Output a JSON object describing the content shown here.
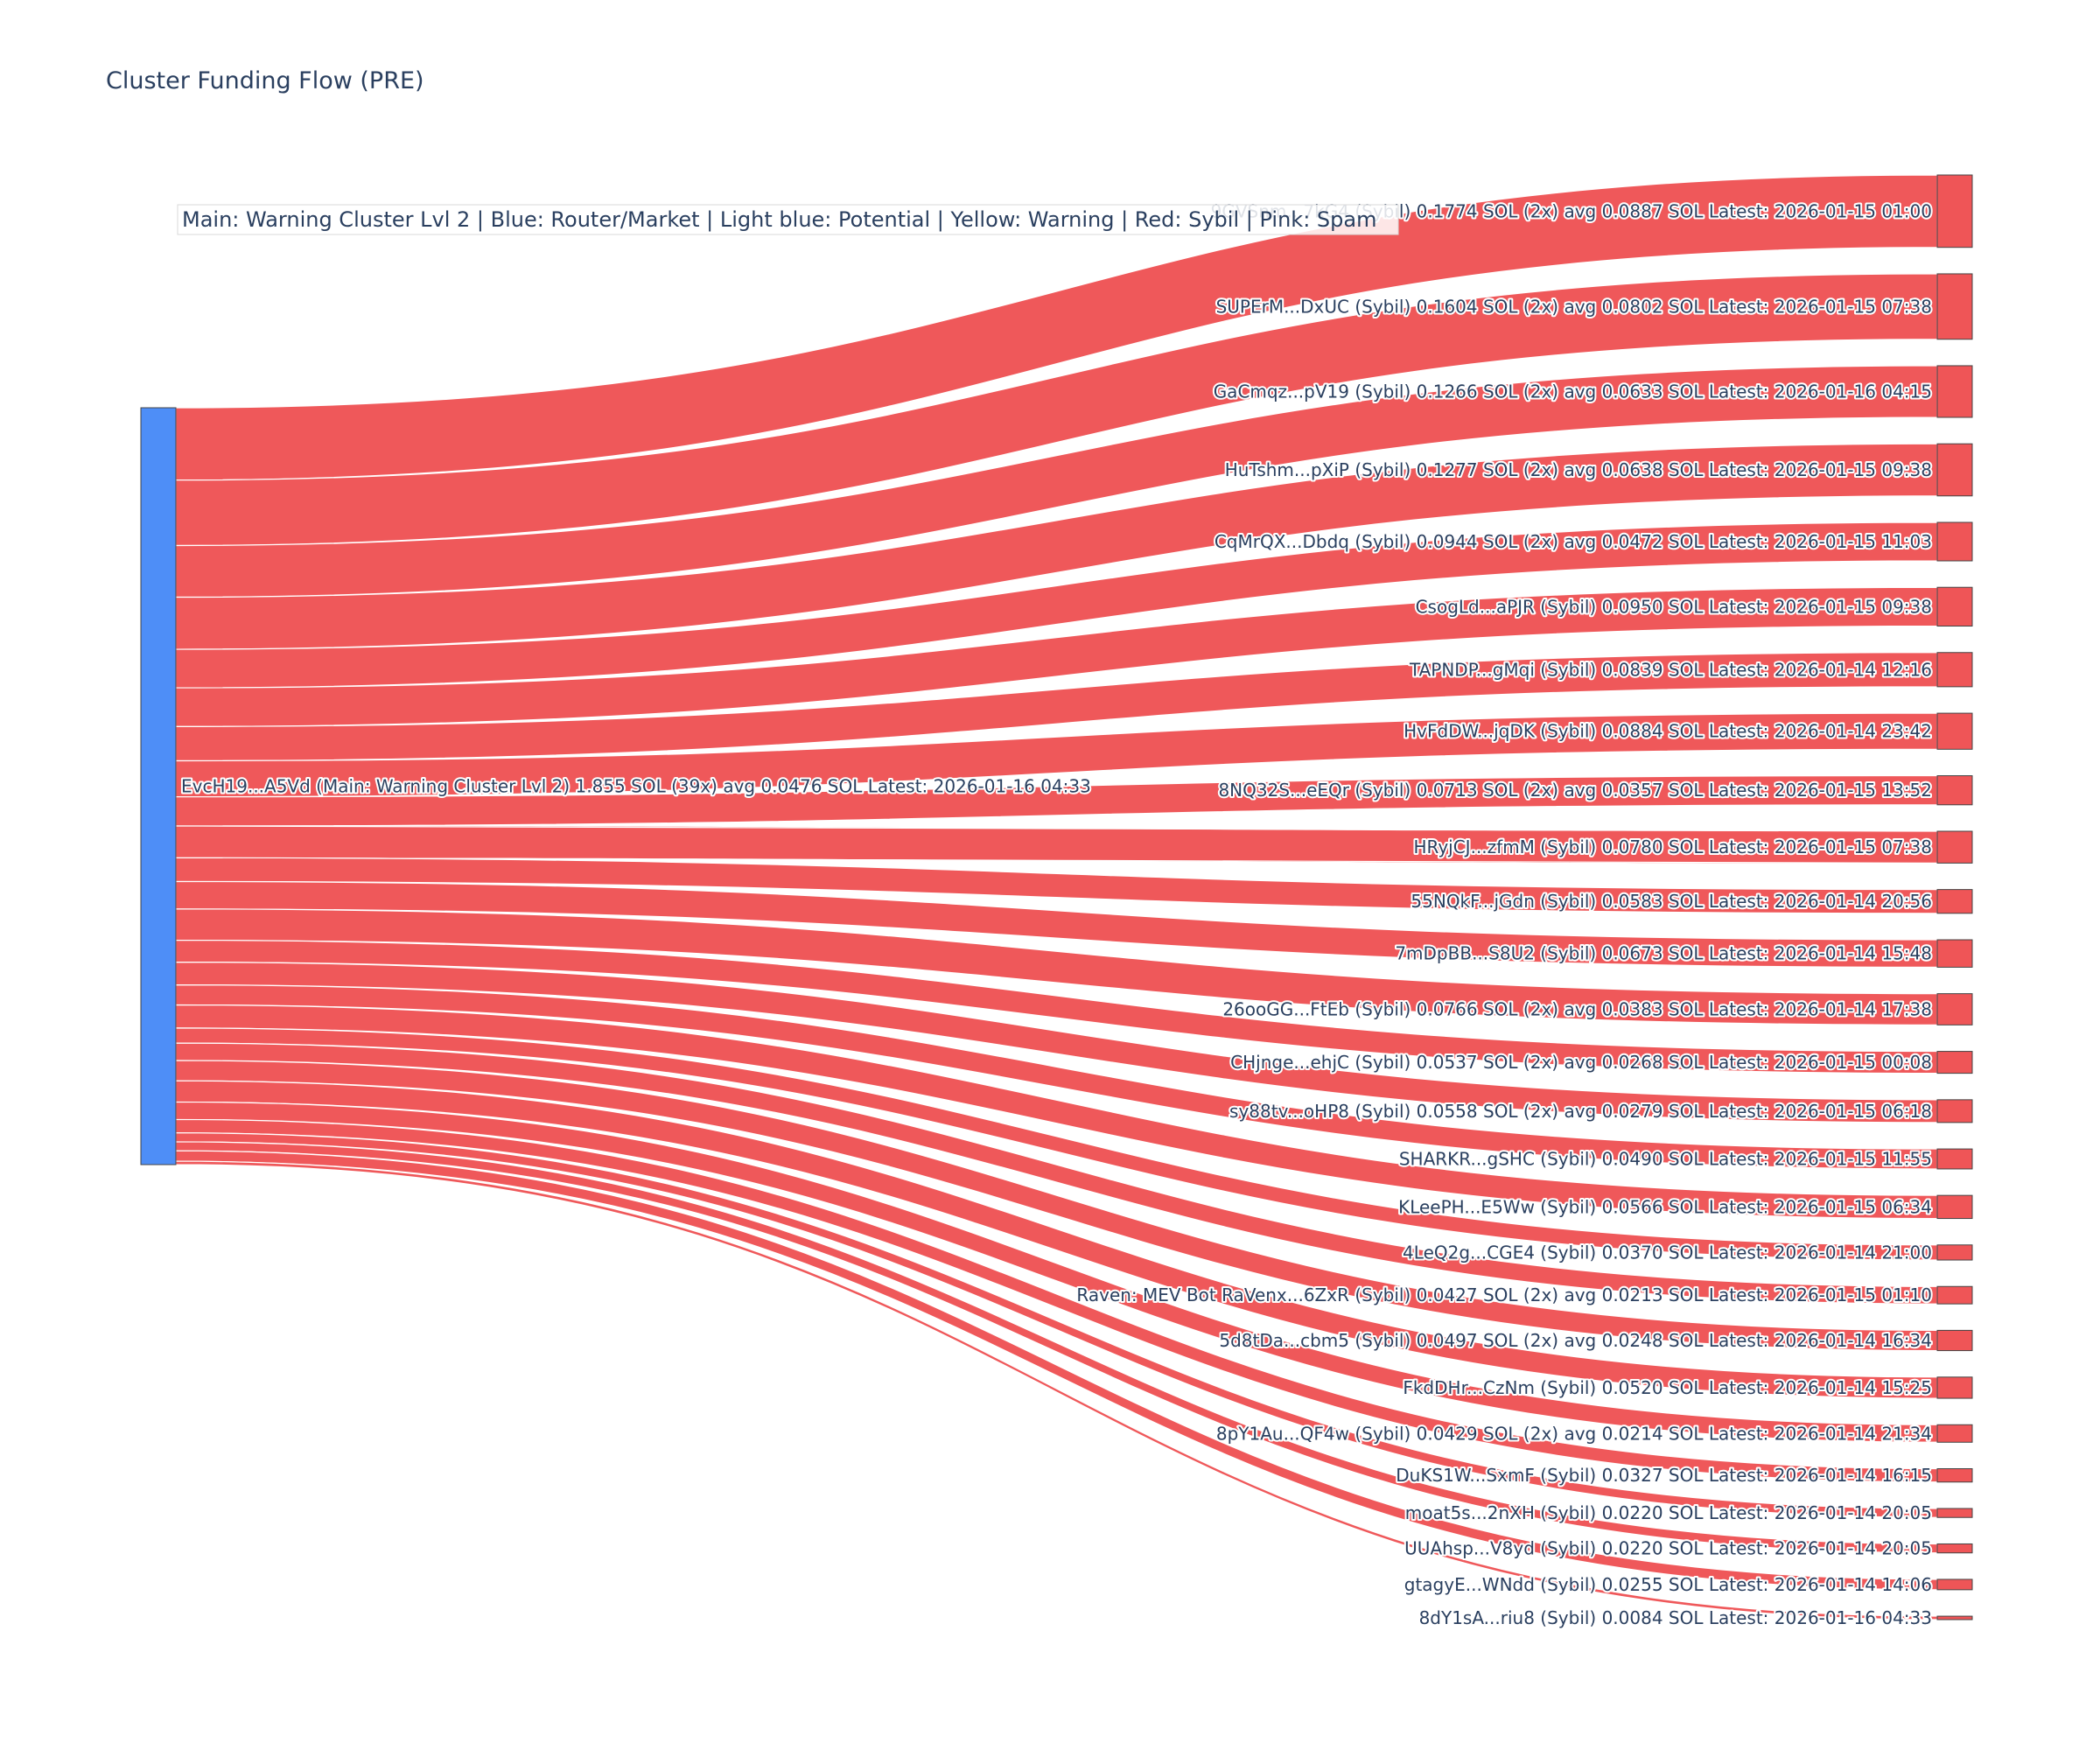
{
  "chart_data": {
    "type": "sankey",
    "title": "Cluster Funding Flow (PRE)",
    "annotation": "Main: Warning Cluster Lvl 2  |  Blue: Router/Market | Light blue: Potential | Yellow: Warning | Red: Sybil | Pink: Spam",
    "colors": {
      "source_node": "#4e8ef7",
      "target_node": "#ef5557",
      "link": "#ef5557"
    },
    "source": {
      "label": "EvcH19...A5Vd (Main: Warning Cluster Lvl 2) 1.855 SOL (39x) avg 0.0476 SOL Latest: 2026-01-16 04:33",
      "value": 1.855
    },
    "targets": [
      {
        "label": "9GVSnm...7kG4 (Sybil) 0.1774 SOL (2x) avg 0.0887 SOL Latest: 2026-01-15 01:00",
        "value": 0.1774
      },
      {
        "label": "SUPErM...DxUC (Sybil) 0.1604 SOL (2x) avg 0.0802 SOL Latest: 2026-01-15 07:38",
        "value": 0.1604
      },
      {
        "label": "GaCmqz...pV19 (Sybil) 0.1266 SOL (2x) avg 0.0633 SOL Latest: 2026-01-16 04:15",
        "value": 0.1266
      },
      {
        "label": "HuTshm...pXiP (Sybil) 0.1277 SOL (2x) avg 0.0638 SOL Latest: 2026-01-15 09:38",
        "value": 0.1277
      },
      {
        "label": "CqMrQX...Dbdq (Sybil) 0.0944 SOL (2x) avg 0.0472 SOL Latest: 2026-01-15 11:03",
        "value": 0.0944
      },
      {
        "label": "CsogLd...aPJR (Sybil) 0.0950 SOL Latest: 2026-01-15 09:38",
        "value": 0.095
      },
      {
        "label": "TAPNDP...gMqi (Sybil) 0.0839 SOL Latest: 2026-01-14 12:16",
        "value": 0.0839
      },
      {
        "label": "HvFdDW...jqDK (Sybil) 0.0884 SOL Latest: 2026-01-14 23:42",
        "value": 0.0884
      },
      {
        "label": "8NQ32S...eEQr (Sybil) 0.0713 SOL (2x) avg 0.0357 SOL Latest: 2026-01-15 13:52",
        "value": 0.0713
      },
      {
        "label": "HRyjCJ...zfmM (Sybil) 0.0780 SOL Latest: 2026-01-15 07:38",
        "value": 0.078
      },
      {
        "label": "55NQkF...jGdn (Sybil) 0.0583 SOL Latest: 2026-01-14 20:56",
        "value": 0.0583
      },
      {
        "label": "7mDpBB...S8U2 (Sybil) 0.0673 SOL Latest: 2026-01-14 15:48",
        "value": 0.0673
      },
      {
        "label": "26ooGG...FtEb (Sybil) 0.0766 SOL (2x) avg 0.0383 SOL Latest: 2026-01-14 17:38",
        "value": 0.0766
      },
      {
        "label": "CHjnge...ehjC (Sybil) 0.0537 SOL (2x) avg 0.0268 SOL Latest: 2026-01-15 00:08",
        "value": 0.0537
      },
      {
        "label": "sy88tv...oHP8 (Sybil) 0.0558 SOL (2x) avg 0.0279 SOL Latest: 2026-01-15 06:18",
        "value": 0.0558
      },
      {
        "label": "SHARKR...gSHC (Sybil) 0.0490 SOL Latest: 2026-01-15 11:55",
        "value": 0.049
      },
      {
        "label": "KLeePH...E5Ww (Sybil) 0.0566 SOL Latest: 2026-01-15 06:34",
        "value": 0.0566
      },
      {
        "label": "4LeQ2g...CGE4 (Sybil) 0.0370 SOL Latest: 2026-01-14 21:00",
        "value": 0.037
      },
      {
        "label": "Raven: MEV Bot RaVenx...6ZxR (Sybil) 0.0427 SOL (2x) avg 0.0213 SOL Latest: 2026-01-15 01:10",
        "value": 0.0427
      },
      {
        "label": "5d8tDa...cbm5 (Sybil) 0.0497 SOL (2x) avg 0.0248 SOL Latest: 2026-01-14 16:34",
        "value": 0.0497
      },
      {
        "label": "FkdDHr...CzNm (Sybil) 0.0520 SOL Latest: 2026-01-14 15:25",
        "value": 0.052
      },
      {
        "label": "8pY1Au...QF4w (Sybil) 0.0429 SOL (2x) avg 0.0214 SOL Latest: 2026-01-14 21:34",
        "value": 0.0429
      },
      {
        "label": "DuKS1W...SxmF (Sybil) 0.0327 SOL Latest: 2026-01-14 16:15",
        "value": 0.0327
      },
      {
        "label": "moat5s...2nXH (Sybil) 0.0220 SOL Latest: 2026-01-14 20:05",
        "value": 0.022
      },
      {
        "label": "UUAhsp...V8yd (Sybil) 0.0220 SOL Latest: 2026-01-14 20:05",
        "value": 0.022
      },
      {
        "label": "gtagyE...WNdd (Sybil) 0.0255 SOL Latest: 2026-01-14 14:06",
        "value": 0.0255
      },
      {
        "label": "8dY1sA...riu8 (Sybil) 0.0084 SOL Latest: 2026-01-16 04:33",
        "value": 0.0084
      }
    ]
  }
}
